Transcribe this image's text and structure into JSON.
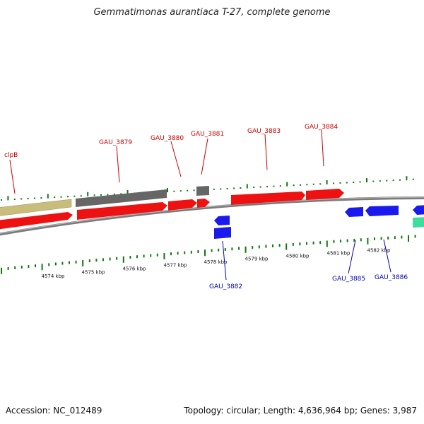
{
  "title": "Gemmatimonas aurantiaca T-27, complete genome",
  "footer": {
    "accession_label": "Accession:",
    "accession": "NC_012489",
    "topology_label": "Topology:",
    "topology": "circular",
    "length_label": "Length:",
    "length": "4,636,964 bp",
    "genes_label": "Genes:",
    "genes": "3,987"
  },
  "colors": {
    "forward_label": "#cc0000",
    "reverse_label": "#0000aa",
    "cds_red": "#ee1111",
    "cds_blue": "#1a1aee",
    "gray_feature": "#666666",
    "tan_feature": "#c8bd7a",
    "teal_feature": "#3fdca0",
    "backbone": "#888888",
    "tick": "#117711"
  },
  "kbp_labels": [
    "4574 kbp",
    "4575 kbp",
    "4576 kbp",
    "4577 kbp",
    "4578 kbp",
    "4579 kbp",
    "4580 kbp",
    "4581 kbp",
    "4582 kbp"
  ],
  "gene_labels_forward": [
    "clpB",
    "GAU_3879",
    "GAU_3880",
    "GAU_3881",
    "GAU_3883",
    "GAU_3884"
  ],
  "gene_labels_reverse": [
    "GAU_3882",
    "GAU_3885",
    "GAU_3886"
  ]
}
